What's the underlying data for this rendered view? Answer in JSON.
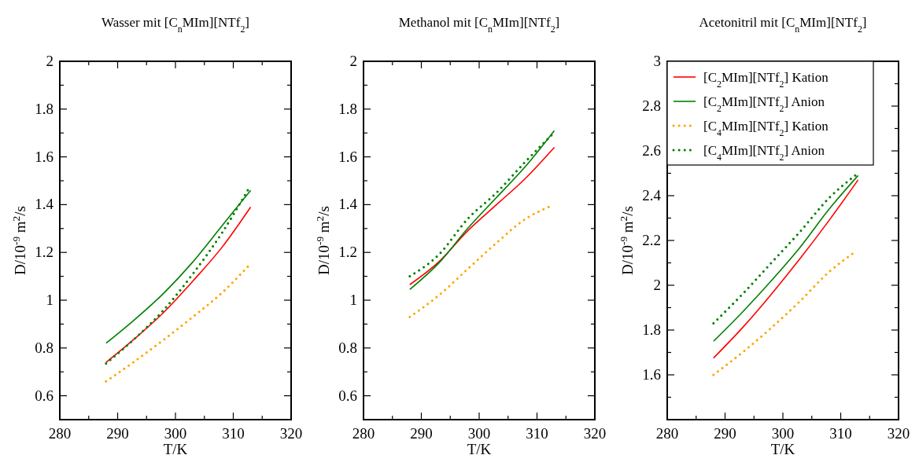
{
  "chart_data": [
    {
      "type": "line",
      "title": "Wasser mit [C$_{n}$MIm][NTf$_{2}$]",
      "xlabel": "T/K",
      "ylabel": "D/10$^{-9}$ m$^{2}$/s",
      "xlim": [
        280,
        320
      ],
      "ylim": [
        0.5,
        2
      ],
      "xticks": [
        280,
        {
          "value": 285,
          "label": null
        },
        290,
        {
          "value": 295,
          "label": null
        },
        300,
        {
          "value": 305,
          "label": null
        },
        310,
        {
          "value": 315,
          "label": null
        },
        320
      ],
      "yticks": [
        {
          "value": 0.5,
          "label": null
        },
        0.6,
        {
          "value": 0.7,
          "label": null
        },
        0.8,
        {
          "value": 0.9,
          "label": null
        },
        1,
        {
          "value": 1.1,
          "label": null
        },
        1.2,
        {
          "value": 1.3,
          "label": null
        },
        1.4,
        {
          "value": 1.5,
          "label": null
        },
        1.6,
        {
          "value": 1.7,
          "label": null
        },
        1.8,
        {
          "value": 1.9,
          "label": null
        },
        2
      ],
      "grid": false,
      "legend": false,
      "series": [
        {
          "color": "#ff0000",
          "line_style": "solid",
          "x": [
            288,
            293,
            298,
            303,
            308,
            313
          ],
          "values": [
            0.74,
            0.84,
            0.95,
            1.08,
            1.22,
            1.39
          ]
        },
        {
          "color": "#008000",
          "line_style": "solid",
          "x": [
            288,
            293,
            298,
            303,
            308,
            313
          ],
          "values": [
            0.82,
            0.92,
            1.03,
            1.16,
            1.31,
            1.46
          ]
        },
        {
          "color": "#ffa500",
          "line_style": "dotted",
          "x": [
            288,
            293,
            298,
            303,
            308,
            312.5
          ],
          "values": [
            0.66,
            0.745,
            0.835,
            0.93,
            1.03,
            1.14
          ]
        },
        {
          "color": "#008000",
          "line_style": "dotted",
          "x": [
            288,
            293,
            298,
            303,
            308,
            312.5
          ],
          "values": [
            0.735,
            0.84,
            0.96,
            1.11,
            1.28,
            1.46
          ]
        }
      ]
    },
    {
      "type": "line",
      "title": "Methanol mit [C$_{n}$MIm][NTf$_{2}$]",
      "xlabel": "T/K",
      "ylabel": "D/10$^{-9}$ m$^{2}$/s",
      "xlim": [
        280,
        320
      ],
      "ylim": [
        0.5,
        2
      ],
      "xticks": [
        280,
        {
          "value": 285,
          "label": null
        },
        290,
        {
          "value": 295,
          "label": null
        },
        300,
        {
          "value": 305,
          "label": null
        },
        310,
        {
          "value": 315,
          "label": null
        },
        320
      ],
      "yticks": [
        {
          "value": 0.5,
          "label": null
        },
        0.6,
        {
          "value": 0.7,
          "label": null
        },
        0.8,
        {
          "value": 0.9,
          "label": null
        },
        1,
        {
          "value": 1.1,
          "label": null
        },
        1.2,
        {
          "value": 1.3,
          "label": null
        },
        1.4,
        {
          "value": 1.5,
          "label": null
        },
        1.6,
        {
          "value": 1.7,
          "label": null
        },
        1.8,
        {
          "value": 1.9,
          "label": null
        },
        2
      ],
      "grid": false,
      "legend": false,
      "series": [
        {
          "color": "#ff0000",
          "line_style": "solid",
          "x": [
            288,
            293,
            298,
            303,
            308,
            313
          ],
          "values": [
            1.065,
            1.16,
            1.29,
            1.4,
            1.51,
            1.64
          ]
        },
        {
          "color": "#008000",
          "line_style": "solid",
          "x": [
            288,
            293,
            298,
            303,
            308,
            313
          ],
          "values": [
            1.045,
            1.155,
            1.3,
            1.43,
            1.56,
            1.71
          ]
        },
        {
          "color": "#ffa500",
          "line_style": "dotted",
          "x": [
            288,
            293,
            298,
            303,
            308,
            312
          ],
          "values": [
            0.93,
            1.02,
            1.13,
            1.24,
            1.34,
            1.39
          ]
        },
        {
          "color": "#008000",
          "line_style": "dotted",
          "x": [
            288,
            293,
            298,
            303,
            308,
            312.5
          ],
          "values": [
            1.1,
            1.19,
            1.34,
            1.45,
            1.58,
            1.69
          ]
        }
      ]
    },
    {
      "type": "line",
      "title": "Acetonitril mit [C$_{n}$MIm][NTf$_{2}$]",
      "xlabel": "T/K",
      "ylabel": "D/10$^{-9}$ m$^{2}$/s",
      "xlim": [
        280,
        320
      ],
      "ylim": [
        1.4,
        3
      ],
      "xticks": [
        280,
        {
          "value": 285,
          "label": null
        },
        290,
        {
          "value": 295,
          "label": null
        },
        300,
        {
          "value": 305,
          "label": null
        },
        310,
        {
          "value": 315,
          "label": null
        },
        320
      ],
      "yticks": [
        {
          "value": 1.4,
          "label": null
        },
        {
          "value": 1.5,
          "label": null
        },
        1.6,
        {
          "value": 1.7,
          "label": null
        },
        1.8,
        {
          "value": 1.9,
          "label": null
        },
        2,
        {
          "value": 2.1,
          "label": null
        },
        2.2,
        {
          "value": 2.3,
          "label": null
        },
        2.4,
        {
          "value": 2.5,
          "label": null
        },
        2.6,
        {
          "value": 2.7,
          "label": null
        },
        2.8,
        {
          "value": 2.9,
          "label": null
        },
        3
      ],
      "grid": false,
      "legend": "top left",
      "series": [
        {
          "name": "[C$_{2}$MIm][NTf$_{2}$] Kation",
          "color": "#ff0000",
          "line_style": "solid",
          "x": [
            288,
            293,
            298,
            303,
            308,
            313
          ],
          "values": [
            1.675,
            1.81,
            1.96,
            2.12,
            2.29,
            2.47
          ]
        },
        {
          "name": "[C$_{2}$MIm][NTf$_{2}$] Anion",
          "color": "#008000",
          "line_style": "solid",
          "x": [
            288,
            293,
            298,
            303,
            308,
            313
          ],
          "values": [
            1.75,
            1.88,
            2.02,
            2.17,
            2.34,
            2.49
          ]
        },
        {
          "name": "[C$_{4}$MIm][NTf$_{2}$] Kation",
          "color": "#ffa500",
          "line_style": "dotted",
          "x": [
            288,
            293,
            298,
            303,
            308,
            312
          ],
          "values": [
            1.6,
            1.7,
            1.81,
            1.93,
            2.06,
            2.14
          ]
        },
        {
          "name": "[C$_{4}$MIm][NTf$_{2}$] Anion",
          "color": "#008000",
          "line_style": "dotted",
          "x": [
            288,
            293,
            298,
            303,
            308,
            312.5
          ],
          "values": [
            1.83,
            1.96,
            2.1,
            2.24,
            2.39,
            2.49
          ]
        }
      ]
    }
  ]
}
